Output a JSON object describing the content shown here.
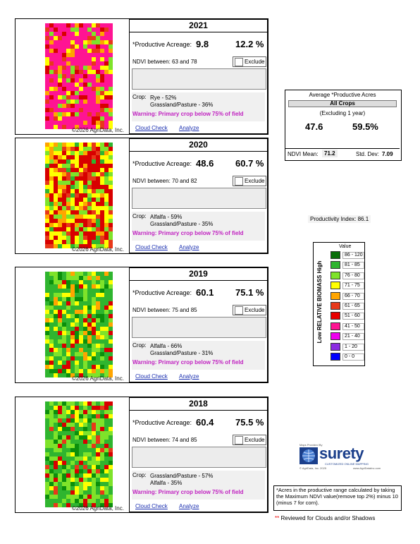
{
  "copyright": "©2026 AgriData, Inc.",
  "links": {
    "cloud_check": "Cloud Check",
    "analyze": "Analyze"
  },
  "labels": {
    "productive_acreage": "*Productive Acreage:",
    "exclude": "Exclude",
    "crop": "Crop:"
  },
  "years": [
    {
      "year": "2021",
      "acreage": "9.8",
      "pct": "12.2 %",
      "ndvi": "NDVI between: 63 and 78",
      "crop1": "Rye - 52%",
      "crop2": "Grassland/Pasture - 36%",
      "warning": "Warning: Primary crop below 75% of field"
    },
    {
      "year": "2020",
      "acreage": "48.6",
      "pct": "60.7 %",
      "ndvi": "NDVI between: 70 and 82",
      "crop1": "Alfalfa - 59%",
      "crop2": "Grassland/Pasture - 35%",
      "warning": "Warning: Primary crop below 75% of field"
    },
    {
      "year": "2019",
      "acreage": "60.1",
      "pct": "75.1 %",
      "ndvi": "NDVI between: 75 and 85",
      "crop1": "Alfalfa - 66%",
      "crop2": "Grassland/Pasture - 31%",
      "warning": "Warning: Primary crop below 75% of field"
    },
    {
      "year": "2018",
      "acreage": "60.4",
      "pct": "75.5 %",
      "ndvi": "NDVI between: 74 and 85",
      "crop1": "Grassland/Pasture - 57%",
      "crop2": "Alfalfa - 35%",
      "warning": "Warning: Primary crop below 75% of field"
    }
  ],
  "average": {
    "title": "Average *Productive Acres",
    "crops": "All Crops",
    "excluding": "(Excluding 1 year)",
    "acres": "47.6",
    "pct": "59.5%",
    "ndvi_mean_label": "NDVI Mean:",
    "ndvi_mean": "71.2",
    "std_dev_label": "Std. Dev:",
    "std_dev": "7.09"
  },
  "productivity_index": "Productivity Index: 86.1",
  "legend": {
    "axis_label": "Low RELATIVE BIOMASS High",
    "header": "Value",
    "rows": [
      {
        "range": "86 - 120",
        "color": "#0a6e0a"
      },
      {
        "range": "81 - 85",
        "color": "#2fb52f"
      },
      {
        "range": "76 - 80",
        "color": "#7ee32a"
      },
      {
        "range": "71 - 75",
        "color": "#ffff00"
      },
      {
        "range": "66 - 70",
        "color": "#ffa500"
      },
      {
        "range": "61 - 65",
        "color": "#e8381a"
      },
      {
        "range": "51 - 60",
        "color": "#e80000"
      },
      {
        "range": "41 - 50",
        "color": "#ff1493"
      },
      {
        "range": "21 - 40",
        "color": "#ee00ee"
      },
      {
        "range": "1 - 20",
        "color": "#8a2be2"
      },
      {
        "range": "0 - 0",
        "color": "#0000ff"
      }
    ]
  },
  "logo": {
    "provided_by": "Maps Provided By",
    "name": "surety",
    "tagline": "CUSTOMIZED ONLINE MAPPING",
    "copyright": "© AgriData, Inc. 2025",
    "url": "www.AgriDataInc.com"
  },
  "footnote": "*Acres in the productive range calculated by taking the Maximum NDVI value(remove top 2%) minus 10 (minus 7 for corn).",
  "reviewed": "Reviewed for Clouds and/or Shadows",
  "reviewed_mark": "**"
}
